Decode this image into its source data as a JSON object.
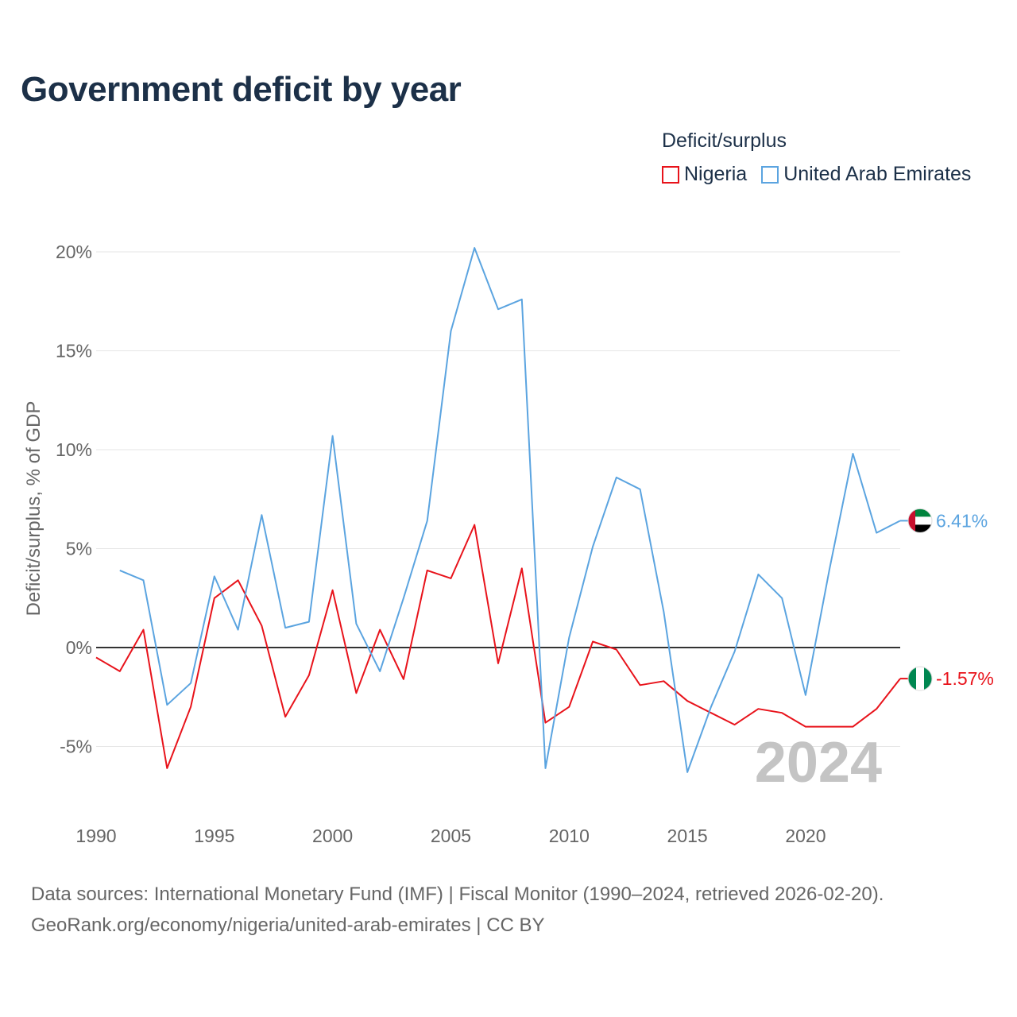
{
  "title": "Government deficit by year",
  "legend_title": "Deficit/surplus",
  "colors": {
    "nigeria": "#e8131b",
    "uae": "#5ba4e0"
  },
  "series_labels": {
    "nigeria": "Nigeria",
    "uae": "United Arab Emirates"
  },
  "end_labels": {
    "nigeria": "-1.57%",
    "uae": "6.41%"
  },
  "year_watermark": "2024",
  "source_line1": "Data sources: International Monetary Fund (IMF) | Fiscal Monitor (1990–2024, retrieved 2026-02-20).",
  "source_line2": "GeoRank.org/economy/nigeria/united-arab-emirates | CC BY",
  "chart_data": {
    "type": "line",
    "title": "Government deficit by year",
    "xlabel": "",
    "ylabel": "Deficit/surplus, % of GDP",
    "xlim": [
      1990,
      2024
    ],
    "ylim": [
      -8,
      21
    ],
    "x_ticks": [
      1990,
      1995,
      2000,
      2005,
      2010,
      2015,
      2020
    ],
    "y_ticks": [
      -5,
      0,
      5,
      10,
      15,
      20
    ],
    "y_tick_labels": [
      "-5%",
      "0%",
      "5%",
      "10%",
      "15%",
      "20%"
    ],
    "grid": true,
    "legend_position": "top-right",
    "series": [
      {
        "name": "Nigeria",
        "key": "nigeria",
        "x": [
          1990,
          1991,
          1992,
          1993,
          1994,
          1995,
          1996,
          1997,
          1998,
          1999,
          2000,
          2001,
          2002,
          2003,
          2004,
          2005,
          2006,
          2007,
          2008,
          2009,
          2010,
          2011,
          2012,
          2013,
          2014,
          2015,
          2016,
          2017,
          2018,
          2019,
          2020,
          2021,
          2022,
          2023,
          2024
        ],
        "values": [
          -0.5,
          -1.2,
          0.9,
          -6.1,
          -3.0,
          2.5,
          3.4,
          1.1,
          -3.5,
          -1.4,
          2.9,
          -2.3,
          0.9,
          -1.6,
          3.9,
          3.5,
          6.2,
          -0.8,
          4.0,
          -3.8,
          -3.0,
          0.3,
          -0.1,
          -1.9,
          -1.7,
          -2.7,
          -3.3,
          -3.9,
          -3.1,
          -3.3,
          -4.0,
          -4.0,
          -4.0,
          -3.1,
          -1.57
        ]
      },
      {
        "name": "United Arab Emirates",
        "key": "uae",
        "x": [
          1991,
          1992,
          1993,
          1994,
          1995,
          1996,
          1997,
          1998,
          1999,
          2000,
          2001,
          2002,
          2003,
          2004,
          2005,
          2006,
          2007,
          2008,
          2009,
          2010,
          2011,
          2012,
          2013,
          2014,
          2015,
          2016,
          2017,
          2018,
          2019,
          2020,
          2021,
          2022,
          2023,
          2024
        ],
        "values": [
          3.9,
          3.4,
          -2.9,
          -1.8,
          3.6,
          0.9,
          6.7,
          1.0,
          1.3,
          10.7,
          1.2,
          -1.2,
          2.5,
          6.4,
          16.0,
          20.2,
          17.1,
          17.6,
          -6.1,
          0.5,
          5.1,
          8.6,
          8.0,
          1.8,
          -6.3,
          -3.0,
          -0.2,
          3.7,
          2.5,
          -2.4,
          3.9,
          9.8,
          5.8,
          6.41
        ]
      }
    ]
  }
}
